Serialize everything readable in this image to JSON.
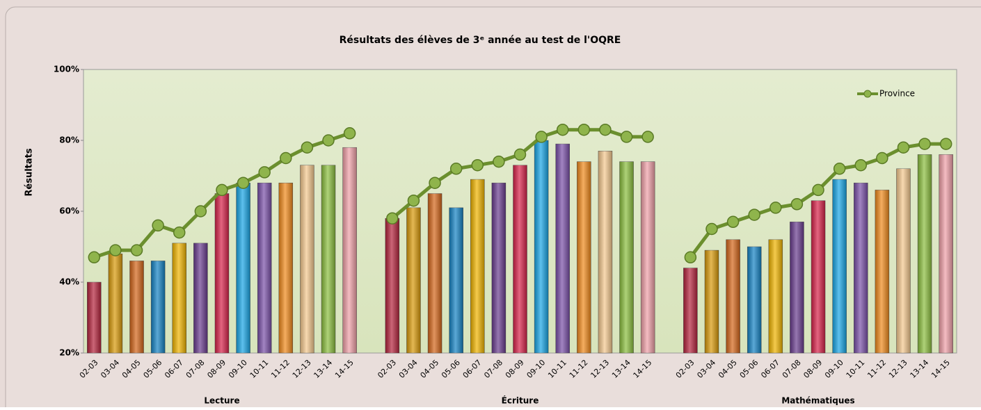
{
  "chart_data": {
    "type": "grouped-bar-line",
    "title": "Résultats des élèves de 3ᵉ année au test de l'OQRE",
    "ylabel": "Résultats",
    "categories": [
      "02-03",
      "03-04",
      "04-05",
      "05-06",
      "06-07",
      "07-08",
      "08-09",
      "09-10",
      "10-11",
      "11-12",
      "12-13",
      "13-14",
      "14-15"
    ],
    "groups": [
      "Lecture",
      "Écriture",
      "Mathématiques"
    ],
    "bar_colors": [
      "#b5243d",
      "#d99a0a",
      "#d4661a",
      "#1583c4",
      "#f0b400",
      "#6a3d8f",
      "#d8234a",
      "#19a6e6",
      "#7a50a8",
      "#f08a1c",
      "#f5c98f",
      "#8cbf3f",
      "#f0a0a8"
    ],
    "bar_values": [
      [
        40,
        48,
        46,
        46,
        51,
        51,
        65,
        68,
        68,
        68,
        73,
        73,
        78
      ],
      [
        58,
        61,
        65,
        61,
        69,
        68,
        73,
        80,
        79,
        74,
        77,
        74,
        74
      ],
      [
        44,
        49,
        52,
        50,
        52,
        57,
        63,
        69,
        68,
        66,
        72,
        76,
        76
      ]
    ],
    "series": [
      {
        "name": "Province",
        "color": "#6b8f2e",
        "values": [
          [
            47,
            49,
            49,
            56,
            54,
            60,
            66,
            68,
            71,
            75,
            78,
            80,
            82
          ],
          [
            58,
            63,
            68,
            72,
            73,
            74,
            76,
            81,
            83,
            83,
            83,
            81,
            81
          ],
          [
            47,
            55,
            57,
            59,
            61,
            62,
            66,
            72,
            73,
            75,
            78,
            79,
            79
          ]
        ]
      }
    ],
    "ylim": [
      20,
      100
    ],
    "yticks": [
      {
        "value": 20,
        "label": "20%"
      },
      {
        "value": 40,
        "label": "40%"
      },
      {
        "value": 60,
        "label": "60%"
      },
      {
        "value": 80,
        "label": "80%"
      },
      {
        "value": 100,
        "label": "100%"
      }
    ],
    "grid": true,
    "legend": "top-right"
  }
}
